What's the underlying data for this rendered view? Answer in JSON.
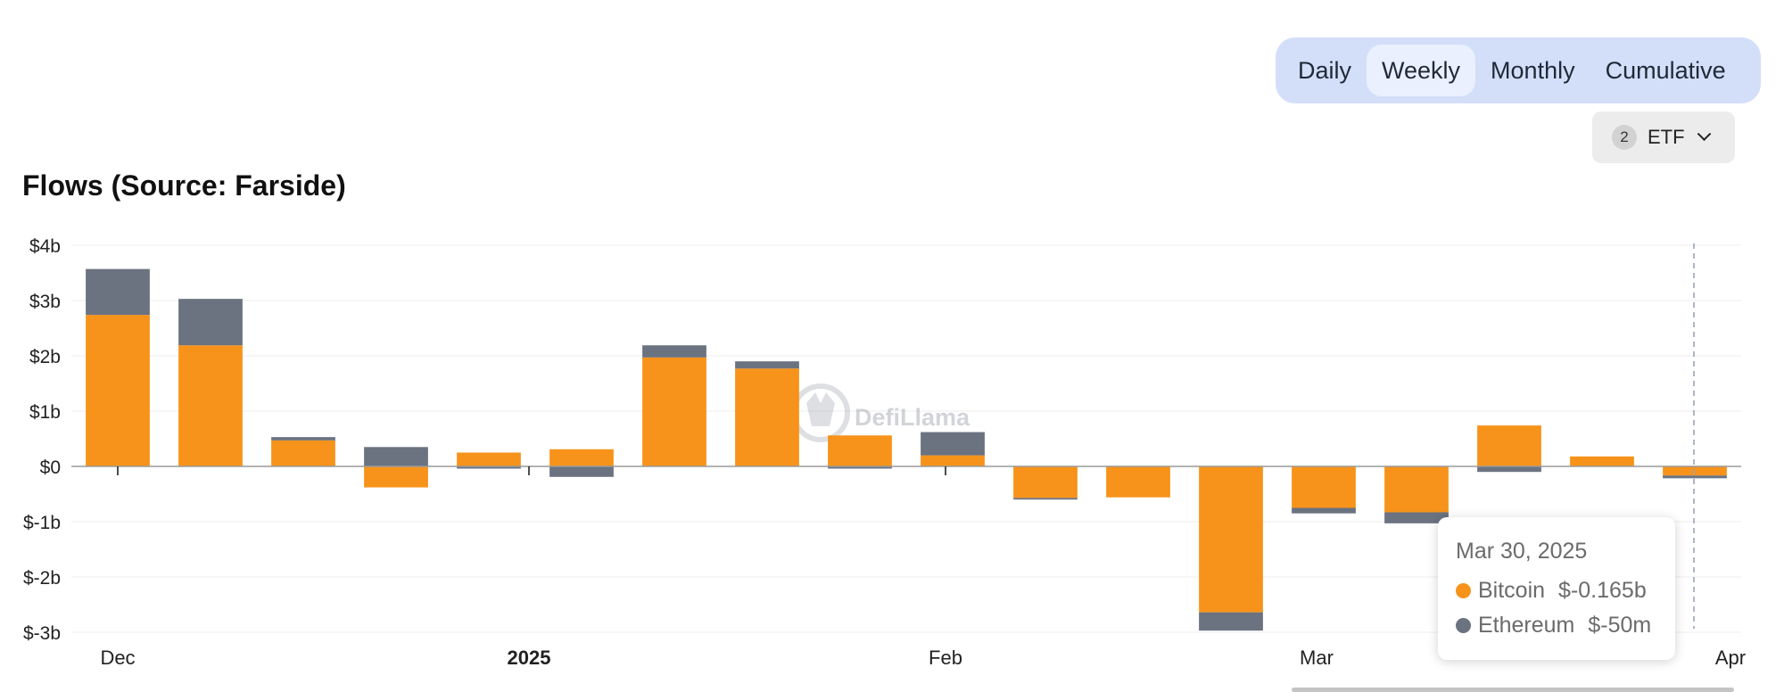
{
  "controls": {
    "toggles": [
      {
        "label": "Daily",
        "active": false
      },
      {
        "label": "Weekly",
        "active": true
      },
      {
        "label": "Monthly",
        "active": false
      },
      {
        "label": "Cumulative",
        "active": false
      }
    ],
    "etf_select": {
      "count": "2",
      "label": "ETF"
    }
  },
  "watermark": "DefiLlama",
  "tooltip": {
    "date": "Mar 30, 2025",
    "rows": [
      {
        "name": "Bitcoin",
        "value": "$-0.165b",
        "color": "#f7931a"
      },
      {
        "name": "Ethereum",
        "value": "$-50m",
        "color": "#6b7280"
      }
    ]
  },
  "chart_data": {
    "type": "bar",
    "stacked": true,
    "title": "Flows (Source: Farside)",
    "x_axis_ticks": [
      {
        "label": "Dec",
        "bold": false
      },
      {
        "label": "2025",
        "bold": true
      },
      {
        "label": "Feb",
        "bold": false
      },
      {
        "label": "Mar",
        "bold": false
      },
      {
        "label": "Apr",
        "bold": false
      }
    ],
    "y_ticks": [
      "$4b",
      "$3b",
      "$2b",
      "$1b",
      "$0",
      "$-1b",
      "$-2b",
      "$-3b"
    ],
    "ylim": [
      -3,
      4
    ],
    "y_unit": "billions USD",
    "grid": true,
    "legend": "none",
    "series": [
      {
        "name": "Bitcoin",
        "color": "#f7931a",
        "values": [
          2.74,
          2.19,
          0.47,
          -0.38,
          0.25,
          0.31,
          1.97,
          1.77,
          0.56,
          0.2,
          -0.57,
          -0.56,
          -2.64,
          -0.75,
          -0.83,
          0.74,
          0.18,
          -0.165
        ]
      },
      {
        "name": "Ethereum",
        "color": "#6b7280",
        "values": [
          0.83,
          0.84,
          0.06,
          0.35,
          -0.04,
          -0.19,
          0.22,
          0.13,
          -0.04,
          0.42,
          -0.03,
          0.0,
          -0.33,
          -0.1,
          -0.2,
          -0.1,
          0.0,
          -0.05
        ]
      }
    ]
  }
}
